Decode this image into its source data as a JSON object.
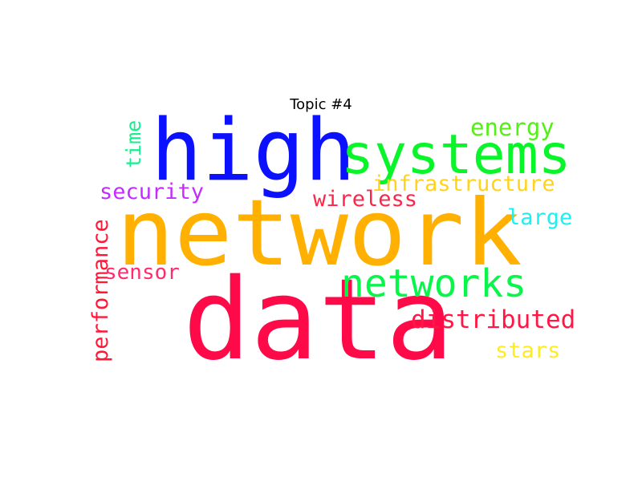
{
  "title": "Topic #4",
  "words": [
    {
      "id": "word-network",
      "text": "network",
      "color": "#ffb000"
    },
    {
      "id": "word-data",
      "text": "data",
      "color": "#ff0a48"
    },
    {
      "id": "word-high",
      "text": "high",
      "color": "#0b11ff"
    },
    {
      "id": "word-systems",
      "text": "systems",
      "color": "#08f52a"
    },
    {
      "id": "word-networks",
      "text": "networks",
      "color": "#08f54a"
    },
    {
      "id": "word-distributed",
      "text": "distributed",
      "color": "#ff1844"
    },
    {
      "id": "word-performance",
      "text": "performance",
      "color": "#ff1838"
    },
    {
      "id": "word-energy",
      "text": "energy",
      "color": "#52f014"
    },
    {
      "id": "word-infrastructure",
      "text": "infrastructure",
      "color": "#ffd21c"
    },
    {
      "id": "word-security",
      "text": "security",
      "color": "#c22cff"
    },
    {
      "id": "word-wireless",
      "text": "wireless",
      "color": "#ff2448"
    },
    {
      "id": "word-large",
      "text": "large",
      "color": "#1cf0f0"
    },
    {
      "id": "word-time",
      "text": "time",
      "color": "#14f08c"
    },
    {
      "id": "word-sensor",
      "text": "sensor",
      "color": "#ff2c6c"
    },
    {
      "id": "word-stars",
      "text": "stars",
      "color": "#ffec20"
    }
  ]
}
